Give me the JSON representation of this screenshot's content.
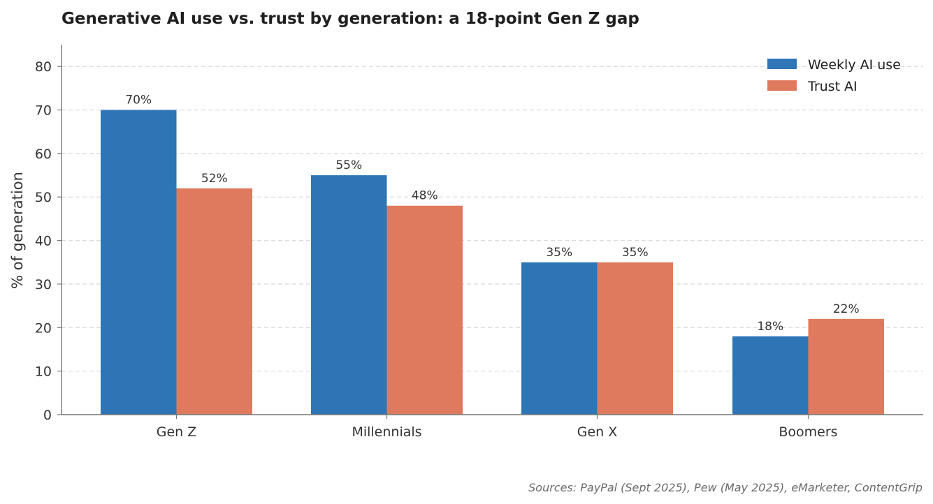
{
  "chart_data": {
    "type": "bar",
    "title": "Generative AI use vs. trust by generation: a 18-point Gen Z gap",
    "ylabel": "% of generation",
    "xlabel": "",
    "categories": [
      "Gen Z",
      "Millennials",
      "Gen X",
      "Boomers"
    ],
    "series": [
      {
        "name": "Weekly AI use",
        "values": [
          70,
          55,
          35,
          18
        ],
        "labels": [
          "70%",
          "55%",
          "35%",
          "18%"
        ],
        "color": "#2e75b6"
      },
      {
        "name": "Trust AI",
        "values": [
          52,
          48,
          35,
          22
        ],
        "labels": [
          "52%",
          "48%",
          "35%",
          "22%"
        ],
        "color": "#e07a5f"
      }
    ],
    "ylim": [
      0,
      85
    ],
    "yticks": [
      0,
      10,
      20,
      30,
      40,
      50,
      60,
      70,
      80
    ],
    "grid": true,
    "legend_position": "top-right",
    "source": "Sources: PayPal (Sept 2025), Pew (May 2025), eMarketer, ContentGrip"
  }
}
